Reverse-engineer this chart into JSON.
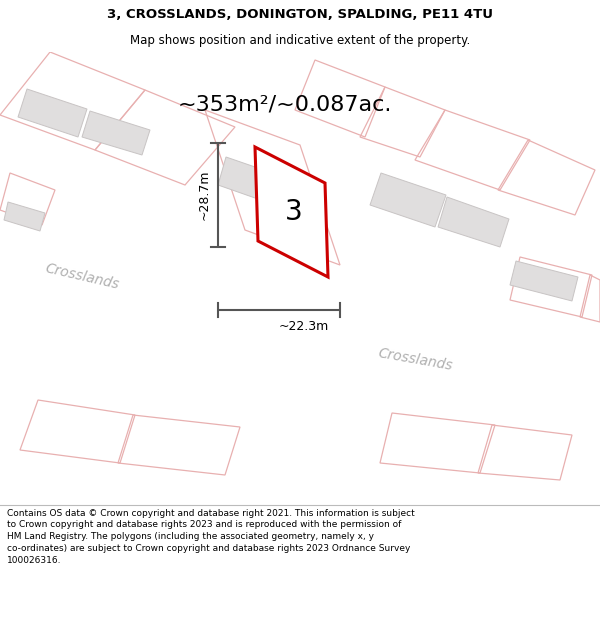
{
  "title_line1": "3, CROSSLANDS, DONINGTON, SPALDING, PE11 4TU",
  "title_line2": "Map shows position and indicative extent of the property.",
  "area_text": "~353m²/~0.087ac.",
  "dim_width": "~22.3m",
  "dim_height": "~28.7m",
  "property_number": "3",
  "street_name1": "Crosslands",
  "street_name2": "Crosslands",
  "footer_text": "Contains OS data © Crown copyright and database right 2021. This information is subject to Crown copyright and database rights 2023 and is reproduced with the permission of HM Land Registry. The polygons (including the associated geometry, namely x, y co-ordinates) are subject to Crown copyright and database rights 2023 Ordnance Survey 100026316.",
  "bg_color": "#ffffff",
  "property_fill": "#ffffff",
  "property_edge": "#cc0000",
  "building_fill": "#e0dede",
  "building_edge": "#c8c4c4",
  "pink_line_color": "#e8b0b0",
  "dim_line_color": "#555555",
  "street_text_color": "#b0b0b0",
  "footer_bg": "#efefef",
  "title_fontsize": 9.5,
  "subtitle_fontsize": 8.5,
  "area_fontsize": 16,
  "dim_fontsize": 9,
  "street_fontsize": 10,
  "num_fontsize": 20,
  "footer_fontsize": 6.5
}
